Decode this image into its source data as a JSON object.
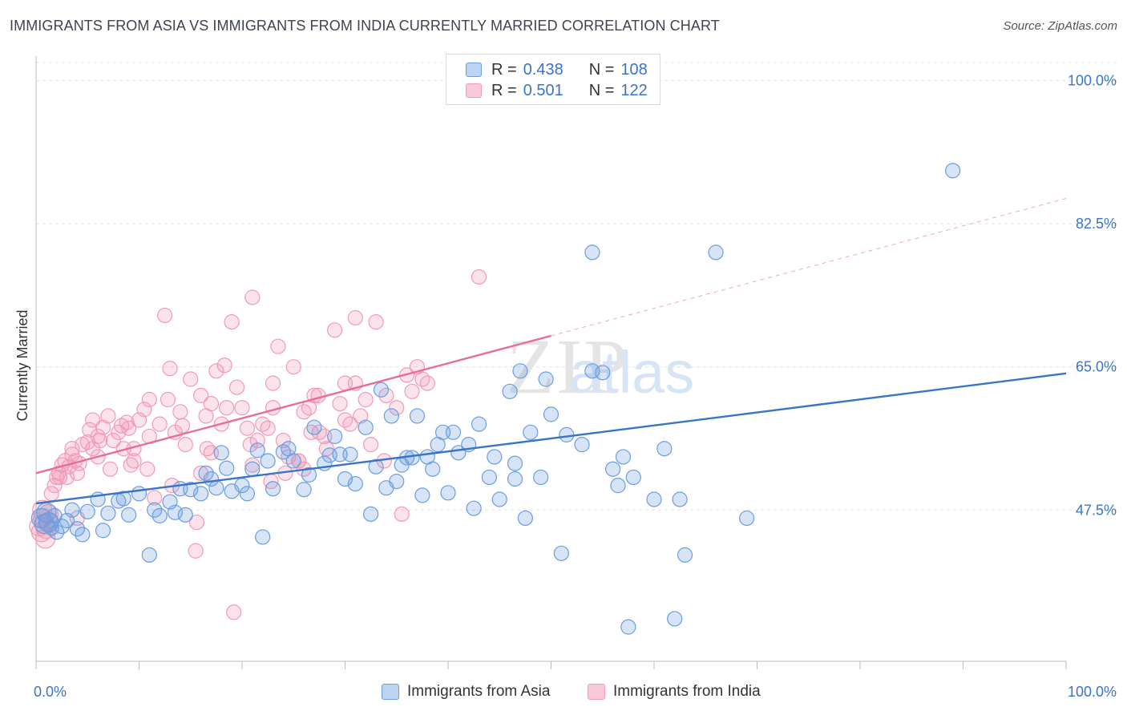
{
  "title": "IMMIGRANTS FROM ASIA VS IMMIGRANTS FROM INDIA CURRENTLY MARRIED CORRELATION CHART",
  "source": "Source: ZipAtlas.com",
  "watermark": {
    "zip": "ZIP",
    "atlas": "atlas"
  },
  "legend_top": [
    {
      "r_label": "R =",
      "r_value": "0.438",
      "n_label": "N =",
      "n_value": "108"
    },
    {
      "r_label": "R =",
      "r_value": "0.501",
      "n_label": "N =",
      "n_value": "122"
    }
  ],
  "colors": {
    "asia": "#6a9ee0",
    "asia_line": "#3a74c8",
    "india": "#f29ab8",
    "india_line": "#e66d96",
    "tick_label": "#3a74c8",
    "grid": "#e0e0e0"
  },
  "chart_data": {
    "type": "scatter",
    "ylabel": "Currently Married",
    "xlim": [
      0,
      100
    ],
    "ylim": [
      29,
      103
    ],
    "x_tick_labels": [
      "0.0%",
      "100.0%"
    ],
    "y_ticks": [
      47.5,
      65.0,
      82.5,
      100.0
    ],
    "y_tick_labels": [
      "47.5%",
      "65.0%",
      "82.5%",
      "100.0%"
    ],
    "grid": "horizontal dashed",
    "series": [
      {
        "name": "Immigrants from Asia",
        "trend": {
          "x0": 0,
          "y0": 48.3,
          "x1": 100,
          "y1": 64.2
        },
        "points": [
          [
            0.5,
            46.5
          ],
          [
            0.8,
            45.8
          ],
          [
            1.0,
            47.2
          ],
          [
            1.2,
            46.0
          ],
          [
            1.5,
            45.3
          ],
          [
            1.8,
            46.8
          ],
          [
            2.0,
            44.8
          ],
          [
            2.5,
            45.5
          ],
          [
            3.0,
            46.2
          ],
          [
            3.5,
            47.5
          ],
          [
            4.0,
            45.2
          ],
          [
            4.5,
            44.5
          ],
          [
            5.0,
            47.3
          ],
          [
            6.0,
            48.8
          ],
          [
            6.5,
            45.0
          ],
          [
            7.0,
            47.1
          ],
          [
            8.0,
            48.6
          ],
          [
            8.5,
            48.9
          ],
          [
            9.0,
            46.9
          ],
          [
            10.0,
            49.5
          ],
          [
            11.0,
            42.0
          ],
          [
            11.5,
            47.5
          ],
          [
            12.0,
            46.8
          ],
          [
            13.0,
            48.5
          ],
          [
            13.5,
            47.2
          ],
          [
            14.0,
            50.1
          ],
          [
            14.5,
            46.9
          ],
          [
            15.0,
            50.0
          ],
          [
            16.0,
            49.5
          ],
          [
            16.5,
            52.0
          ],
          [
            17.0,
            51.3
          ],
          [
            17.5,
            50.2
          ],
          [
            18.0,
            54.5
          ],
          [
            18.5,
            52.6
          ],
          [
            19.0,
            49.8
          ],
          [
            20.0,
            50.5
          ],
          [
            20.5,
            49.5
          ],
          [
            21.0,
            52.5
          ],
          [
            21.5,
            54.8
          ],
          [
            22.0,
            44.2
          ],
          [
            22.5,
            53.5
          ],
          [
            23.0,
            50.1
          ],
          [
            24.0,
            54.6
          ],
          [
            24.5,
            55.0
          ],
          [
            25.0,
            53.5
          ],
          [
            26.0,
            50.0
          ],
          [
            26.5,
            51.8
          ],
          [
            27.0,
            57.6
          ],
          [
            28.0,
            53.2
          ],
          [
            28.5,
            54.2
          ],
          [
            29.0,
            56.5
          ],
          [
            29.5,
            54.3
          ],
          [
            30.0,
            51.3
          ],
          [
            30.5,
            54.3
          ],
          [
            31.0,
            50.7
          ],
          [
            32.0,
            57.6
          ],
          [
            32.5,
            47.0
          ],
          [
            33.0,
            52.8
          ],
          [
            33.5,
            62.2
          ],
          [
            34.0,
            50.2
          ],
          [
            34.5,
            59.0
          ],
          [
            35.0,
            51.0
          ],
          [
            35.5,
            53.0
          ],
          [
            36.0,
            53.9
          ],
          [
            36.5,
            53.9
          ],
          [
            37.0,
            59.0
          ],
          [
            37.5,
            49.3
          ],
          [
            38.0,
            54.0
          ],
          [
            39.0,
            55.5
          ],
          [
            39.5,
            57.0
          ],
          [
            40.0,
            49.6
          ],
          [
            40.5,
            57.0
          ],
          [
            41.0,
            54.5
          ],
          [
            42.0,
            55.5
          ],
          [
            42.5,
            47.7
          ],
          [
            43.0,
            58.0
          ],
          [
            44.0,
            51.5
          ],
          [
            44.5,
            54.0
          ],
          [
            45.0,
            48.8
          ],
          [
            46.0,
            62.0
          ],
          [
            46.5,
            53.2
          ],
          [
            47.0,
            64.5
          ],
          [
            47.5,
            46.5
          ],
          [
            48.0,
            57.0
          ],
          [
            49.0,
            51.5
          ],
          [
            49.5,
            63.5
          ],
          [
            50.0,
            59.2
          ],
          [
            51.0,
            42.2
          ],
          [
            51.5,
            56.7
          ],
          [
            53.0,
            55.5
          ],
          [
            54.0,
            64.5
          ],
          [
            55.0,
            64.3
          ],
          [
            56.0,
            52.5
          ],
          [
            56.5,
            50.5
          ],
          [
            57.0,
            54.0
          ],
          [
            57.5,
            33.2
          ],
          [
            58.0,
            51.5
          ],
          [
            60.0,
            48.8
          ],
          [
            61.0,
            55.0
          ],
          [
            62.0,
            34.2
          ],
          [
            62.5,
            48.8
          ],
          [
            63.0,
            42.0
          ],
          [
            66.0,
            79.0
          ],
          [
            69.0,
            46.5
          ],
          [
            89.0,
            89.0
          ],
          [
            54.0,
            79.0
          ],
          [
            46.5,
            51.3
          ],
          [
            38.5,
            52.5
          ]
        ]
      },
      {
        "name": "Immigrants from India",
        "trend": {
          "x0": 0,
          "y0": 52.0,
          "x1": 50,
          "y1": 68.8
        },
        "points": [
          [
            0.3,
            45.5
          ],
          [
            0.5,
            44.8
          ],
          [
            0.7,
            46.5
          ],
          [
            0.9,
            44.0
          ],
          [
            1.0,
            45.2
          ],
          [
            1.2,
            47.0
          ],
          [
            1.5,
            49.5
          ],
          [
            1.8,
            50.5
          ],
          [
            2.0,
            51.5
          ],
          [
            2.2,
            52.0
          ],
          [
            2.5,
            53.0
          ],
          [
            2.8,
            53.5
          ],
          [
            3.0,
            51.5
          ],
          [
            3.2,
            52.8
          ],
          [
            3.5,
            54.3
          ],
          [
            3.8,
            53.5
          ],
          [
            4.0,
            52.0
          ],
          [
            4.5,
            55.5
          ],
          [
            5.0,
            55.8
          ],
          [
            5.2,
            57.3
          ],
          [
            5.5,
            58.5
          ],
          [
            6.0,
            56.5
          ],
          [
            6.5,
            57.6
          ],
          [
            7.0,
            59.0
          ],
          [
            7.5,
            56.0
          ],
          [
            8.0,
            57.0
          ],
          [
            8.5,
            55.0
          ],
          [
            9.0,
            57.5
          ],
          [
            9.5,
            53.5
          ],
          [
            10.0,
            58.5
          ],
          [
            10.5,
            59.8
          ],
          [
            11.0,
            61.0
          ],
          [
            11.5,
            49.0
          ],
          [
            12.0,
            58.0
          ],
          [
            12.5,
            71.3
          ],
          [
            13.0,
            64.8
          ],
          [
            13.5,
            57.0
          ],
          [
            14.0,
            59.5
          ],
          [
            14.5,
            55.5
          ],
          [
            15.0,
            63.5
          ],
          [
            15.5,
            42.5
          ],
          [
            16.0,
            61.5
          ],
          [
            16.5,
            59.0
          ],
          [
            17.0,
            54.5
          ],
          [
            17.5,
            64.5
          ],
          [
            18.0,
            58.0
          ],
          [
            18.5,
            60.0
          ],
          [
            19.0,
            70.5
          ],
          [
            19.5,
            62.5
          ],
          [
            20.0,
            60.0
          ],
          [
            20.5,
            57.5
          ],
          [
            21.0,
            53.0
          ],
          [
            21.5,
            56.0
          ],
          [
            22.0,
            58.0
          ],
          [
            22.5,
            57.5
          ],
          [
            23.0,
            60.0
          ],
          [
            23.5,
            67.5
          ],
          [
            24.0,
            56.0
          ],
          [
            24.5,
            54.0
          ],
          [
            25.0,
            65.0
          ],
          [
            25.5,
            53.5
          ],
          [
            26.0,
            59.5
          ],
          [
            26.5,
            60.0
          ],
          [
            27.0,
            61.5
          ],
          [
            27.5,
            57.0
          ],
          [
            28.0,
            56.5
          ],
          [
            29.0,
            69.5
          ],
          [
            29.5,
            60.5
          ],
          [
            30.0,
            63.0
          ],
          [
            30.5,
            58.0
          ],
          [
            31.0,
            71.0
          ],
          [
            31.5,
            59.0
          ],
          [
            32.0,
            61.0
          ],
          [
            32.5,
            55.5
          ],
          [
            33.0,
            70.5
          ],
          [
            34.0,
            61.5
          ],
          [
            35.0,
            60.0
          ],
          [
            35.5,
            47.0
          ],
          [
            36.0,
            64.0
          ],
          [
            36.5,
            62.0
          ],
          [
            4.0,
            46.5
          ],
          [
            6.2,
            56.0
          ],
          [
            9.2,
            53.0
          ],
          [
            8.3,
            57.8
          ],
          [
            12.8,
            61.0
          ],
          [
            14.2,
            57.8
          ],
          [
            18.3,
            65.2
          ],
          [
            19.2,
            35.0
          ],
          [
            21.0,
            73.5
          ],
          [
            23.0,
            63.0
          ],
          [
            27.4,
            61.5
          ],
          [
            31.0,
            63.0
          ],
          [
            37.0,
            65.0
          ],
          [
            37.5,
            63.5
          ],
          [
            43.0,
            76.0
          ],
          [
            38.0,
            63.0
          ],
          [
            30.0,
            58.5
          ],
          [
            26.7,
            57.0
          ],
          [
            17.0,
            60.5
          ],
          [
            16.0,
            52.0
          ],
          [
            11.0,
            56.5
          ],
          [
            9.5,
            55.0
          ],
          [
            7.2,
            52.5
          ],
          [
            6.0,
            54.0
          ],
          [
            5.5,
            55.0
          ],
          [
            4.2,
            53.2
          ],
          [
            3.5,
            55.0
          ],
          [
            2.3,
            51.5
          ],
          [
            1.3,
            46.0
          ],
          [
            0.6,
            47.5
          ],
          [
            15.6,
            46.0
          ],
          [
            20.8,
            55.5
          ],
          [
            22.8,
            51.0
          ],
          [
            25.5,
            53.5
          ],
          [
            28.2,
            55.0
          ],
          [
            33.8,
            53.5
          ],
          [
            26.0,
            52.5
          ],
          [
            24.2,
            52.0
          ],
          [
            13.2,
            50.5
          ],
          [
            10.8,
            52.5
          ],
          [
            8.8,
            58.2
          ],
          [
            16.6,
            55.0
          ]
        ]
      }
    ]
  },
  "bottom_legend": [
    "Immigrants from Asia",
    "Immigrants from India"
  ]
}
